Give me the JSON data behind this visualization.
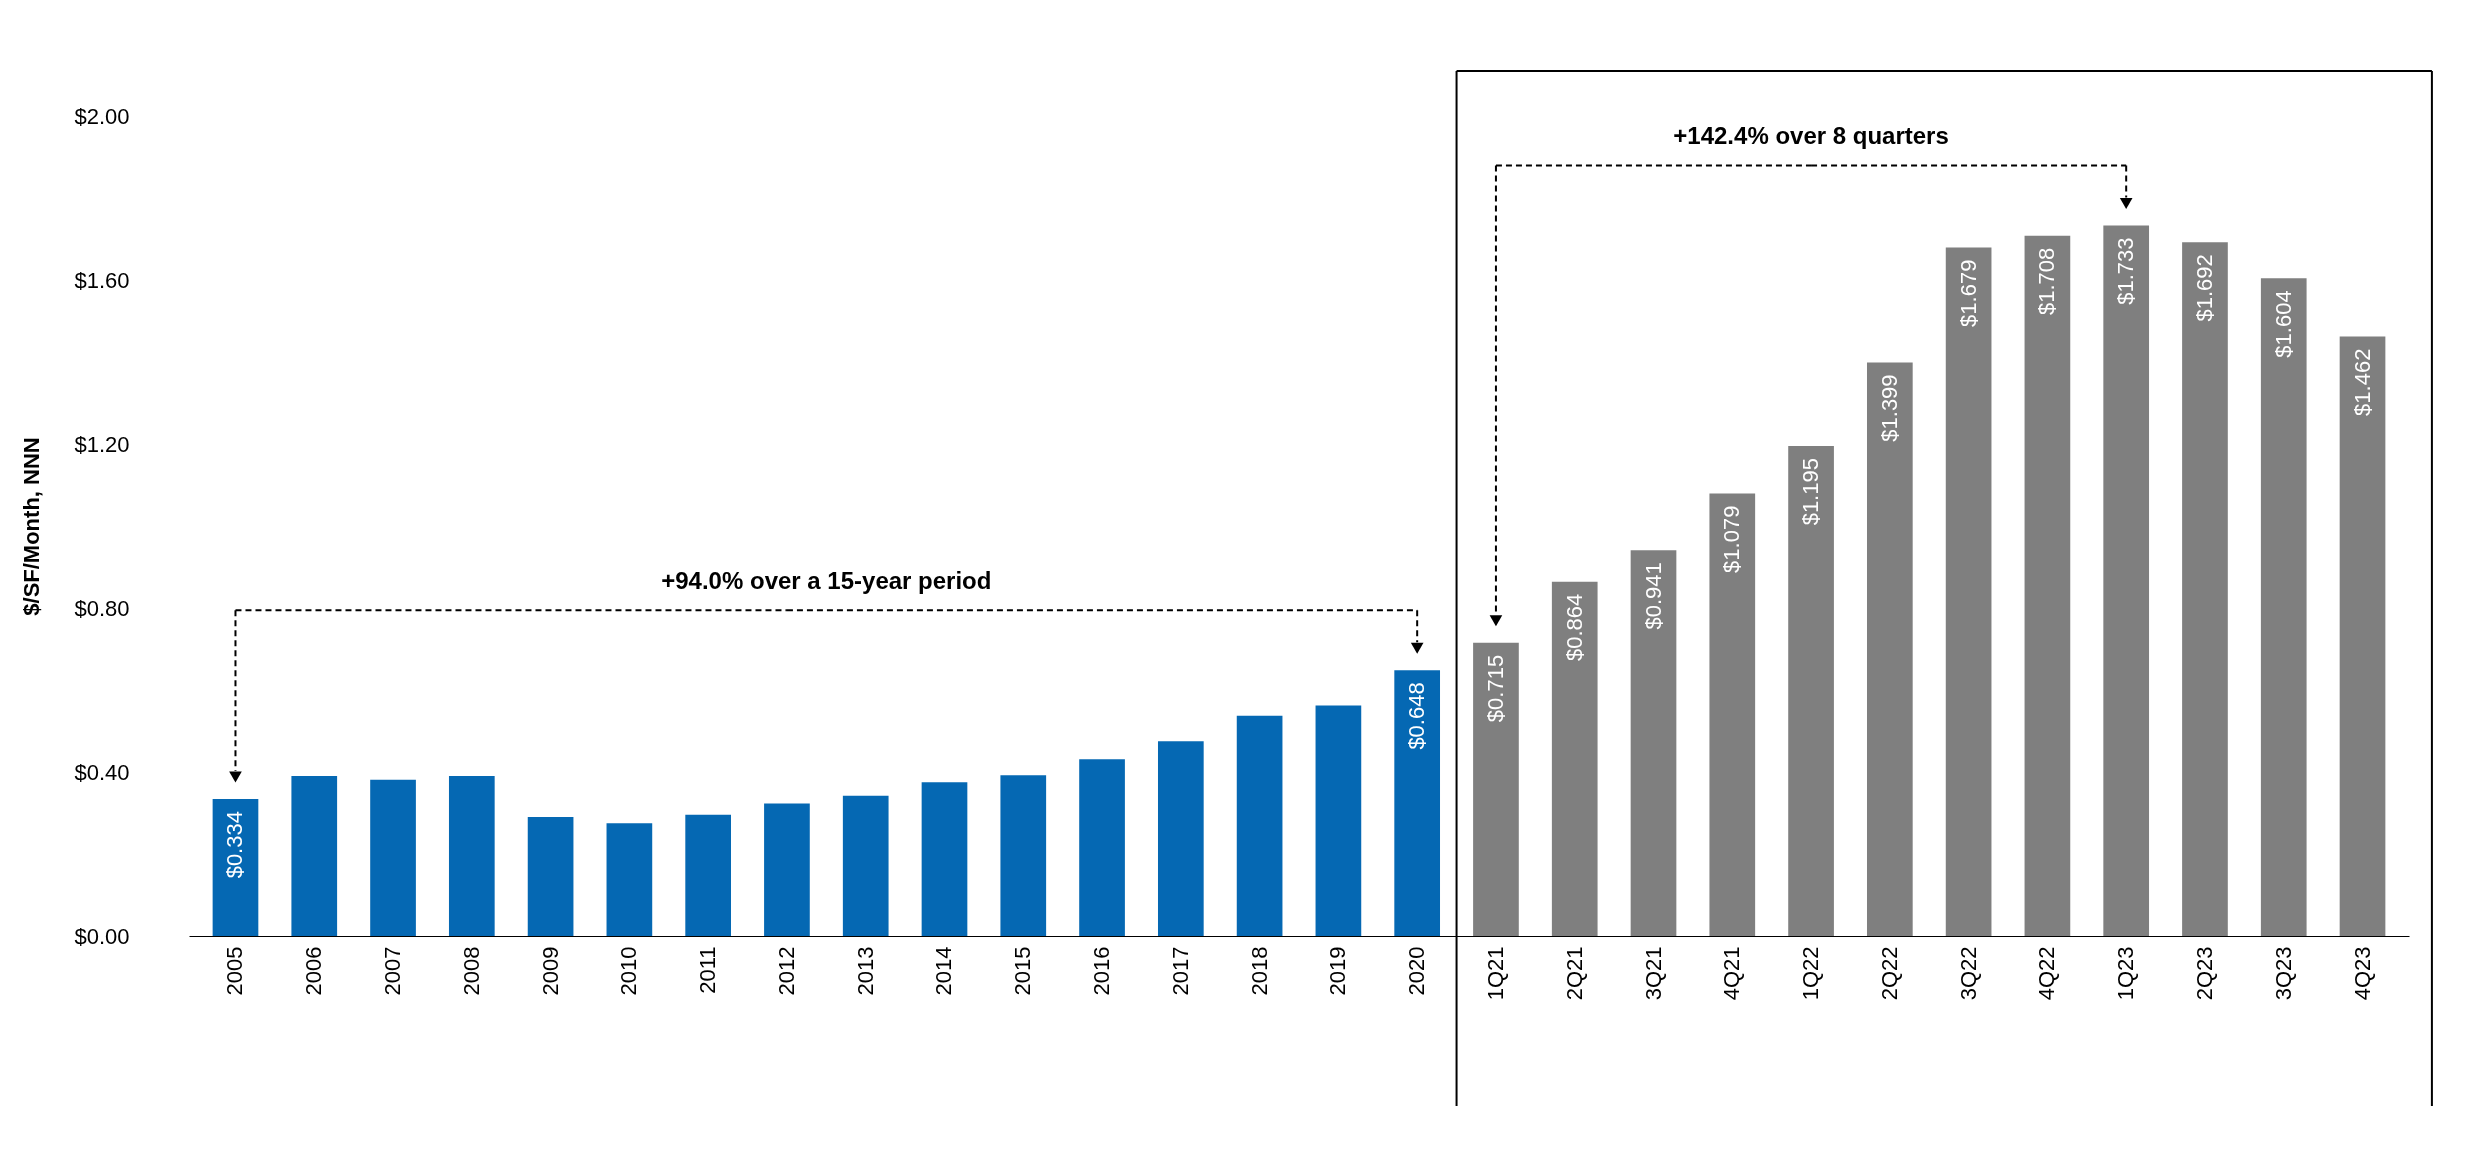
{
  "chart_data": {
    "type": "bar",
    "ylabel": "$/SF/Month, NNN",
    "categories": [
      "2005",
      "2006",
      "2007",
      "2008",
      "2009",
      "2010",
      "2011",
      "2012",
      "2013",
      "2014",
      "2015",
      "2016",
      "2017",
      "2018",
      "2019",
      "2020",
      "1Q21",
      "2Q21",
      "3Q21",
      "4Q21",
      "1Q22",
      "2Q22",
      "3Q22",
      "4Q22",
      "1Q23",
      "2Q23",
      "3Q23",
      "4Q23"
    ],
    "series": [
      {
        "color": "#0568b3",
        "values": [
          0.334,
          0.39,
          0.381,
          0.39,
          0.29,
          0.275,
          0.296,
          0.323,
          0.342,
          0.375,
          0.392,
          0.431,
          0.475,
          0.537,
          0.562,
          0.648,
          null,
          null,
          null,
          null,
          null,
          null,
          null,
          null,
          null,
          null,
          null,
          null
        ],
        "value_labels": [
          "$0.334",
          null,
          null,
          null,
          null,
          null,
          null,
          null,
          null,
          null,
          null,
          null,
          null,
          null,
          null,
          "$0.648",
          null,
          null,
          null,
          null,
          null,
          null,
          null,
          null,
          null,
          null,
          null,
          null
        ]
      },
      {
        "color": "#7f7f7f",
        "values": [
          null,
          null,
          null,
          null,
          null,
          null,
          null,
          null,
          null,
          null,
          null,
          null,
          null,
          null,
          null,
          null,
          0.715,
          0.864,
          0.941,
          1.079,
          1.195,
          1.399,
          1.679,
          1.708,
          1.733,
          1.692,
          1.604,
          1.462
        ],
        "value_labels": [
          null,
          null,
          null,
          null,
          null,
          null,
          null,
          null,
          null,
          null,
          null,
          null,
          null,
          null,
          null,
          null,
          "$0.715",
          "$0.864",
          "$0.941",
          "$1.079",
          "$1.195",
          "$1.399",
          "$1.679",
          "$1.708",
          "$1.733",
          "$1.692",
          "$1.604",
          "$1.462"
        ]
      }
    ],
    "ylim": [
      0,
      2
    ],
    "yticks": [
      {
        "value": 0,
        "label": "$0.00"
      },
      {
        "value": 0.4,
        "label": "$0.40"
      },
      {
        "value": 0.8,
        "label": "$0.80"
      },
      {
        "value": 1.2,
        "label": "$1.20"
      },
      {
        "value": 1.6,
        "label": "$1.60"
      },
      {
        "value": 2,
        "label": "$2.00"
      }
    ],
    "annotations": [
      "+94.0% over a 15-year period",
      "+142.4% over 8 quarters"
    ],
    "grid": false,
    "legend": false
  }
}
